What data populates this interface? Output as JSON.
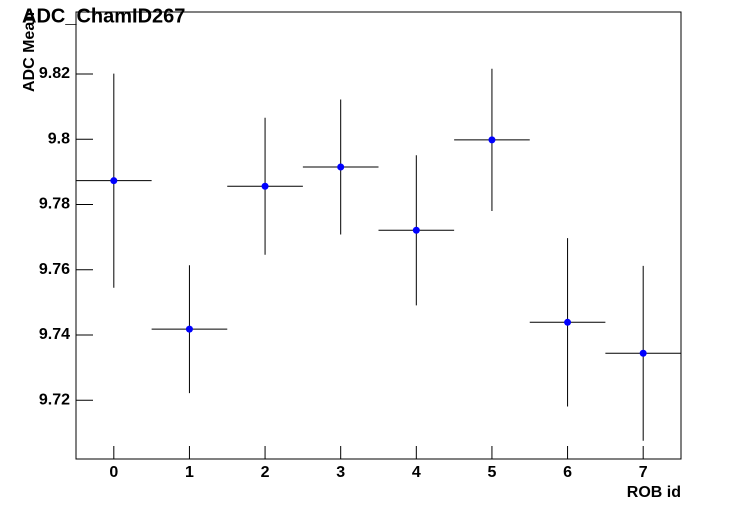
{
  "chart_data": {
    "type": "scatter",
    "title": "ADC_ChamID267",
    "xlabel": "ROB id",
    "ylabel": "ADC Mean",
    "x": [
      0,
      1,
      2,
      3,
      4,
      5,
      6,
      7
    ],
    "xerr": [
      0.5,
      0.5,
      0.5,
      0.5,
      0.5,
      0.5,
      0.5,
      0.5
    ],
    "series": [
      {
        "color": "#0000ff",
        "values": [
          9.7873,
          9.7418,
          9.7856,
          9.7915,
          9.7721,
          9.7998,
          9.7439,
          9.7344
        ],
        "errors": [
          0.0328,
          0.0196,
          0.021,
          0.0207,
          0.023,
          0.0218,
          0.0258,
          0.0268
        ]
      }
    ],
    "xlim": [
      -0.5,
      7.5
    ],
    "ylim": [
      9.702,
      9.839
    ],
    "xticks": [
      0,
      1,
      2,
      3,
      4,
      5,
      6,
      7
    ],
    "yticks": [
      9.72,
      9.74,
      9.76,
      9.78,
      9.8,
      9.82
    ]
  }
}
